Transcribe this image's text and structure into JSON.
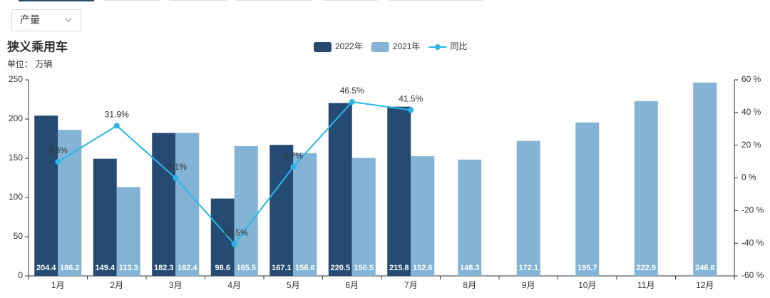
{
  "dropdown": "产量",
  "chart_data": {
    "type": "bar_line",
    "title": "狭义乘用车",
    "subtitle": "单位： 万辆",
    "categories": [
      "1月",
      "2月",
      "3月",
      "4月",
      "5月",
      "6月",
      "7月",
      "8月",
      "9月",
      "10月",
      "11月",
      "12月"
    ],
    "series": [
      {
        "name": "2022年",
        "type": "bar",
        "color": "#264b73",
        "values": [
          204.4,
          149.4,
          182.3,
          98.6,
          167.1,
          220.5,
          215.8,
          null,
          null,
          null,
          null,
          null
        ]
      },
      {
        "name": "2021年",
        "type": "bar",
        "color": "#83b4d6",
        "values": [
          186.2,
          113.3,
          182.4,
          165.5,
          156.6,
          150.5,
          152.6,
          148.3,
          172.1,
          195.7,
          222.9,
          246.6
        ]
      },
      {
        "name": "同比",
        "type": "line",
        "axis": "y2",
        "color": "#29b6e6",
        "values": [
          9.8,
          31.9,
          -0.1,
          -40.5,
          6.7,
          46.5,
          41.5,
          null,
          null,
          null,
          null,
          null
        ],
        "value_labels": [
          "9.8%",
          "31.9%",
          "-0.1%",
          "-40.5%",
          "6.7%",
          "46.5%",
          "41.5%",
          null,
          null,
          null,
          null,
          null
        ]
      }
    ],
    "ylim": [
      0,
      250
    ],
    "yticks": [
      0,
      50,
      100,
      150,
      200,
      250
    ],
    "y2lim": [
      -60,
      60
    ],
    "y2ticks": [
      {
        "value": -60,
        "label": "-60 %"
      },
      {
        "value": -40,
        "label": "-40 %"
      },
      {
        "value": -20,
        "label": "-20 %"
      },
      {
        "value": 0,
        "label": "0 %"
      },
      {
        "value": 20,
        "label": "20 %"
      },
      {
        "value": 40,
        "label": "40 %"
      },
      {
        "value": 60,
        "label": "60 %"
      }
    ],
    "grid": false,
    "legend": "top"
  }
}
